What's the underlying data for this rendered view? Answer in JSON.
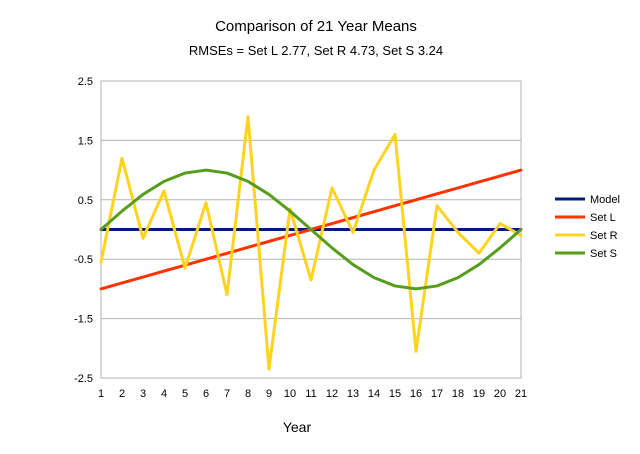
{
  "chart_data": {
    "type": "line",
    "title": "Comparison of 21 Year Means",
    "subtitle": "RMSEs = Set L 2.77, Set R 4.73, Set S 3.24",
    "xlabel": "Year",
    "ylabel": "",
    "categories": [
      "1",
      "2",
      "3",
      "4",
      "5",
      "6",
      "7",
      "8",
      "9",
      "10",
      "11",
      "12",
      "13",
      "14",
      "15",
      "16",
      "17",
      "18",
      "19",
      "20",
      "21"
    ],
    "ylim": [
      -2.5,
      2.5
    ],
    "yticks": [
      -2.5,
      -1.5,
      -0.5,
      0.5,
      1.5,
      2.5
    ],
    "ytick_labels": [
      "-2.5",
      "-1.5",
      "-0.5",
      "0.5",
      "1.5",
      "2.5"
    ],
    "grid": true,
    "legend_position": "right",
    "series": [
      {
        "name": "Model",
        "color": "#001a80",
        "values": [
          0,
          0,
          0,
          0,
          0,
          0,
          0,
          0,
          0,
          0,
          0,
          0,
          0,
          0,
          0,
          0,
          0,
          0,
          0,
          0,
          0
        ]
      },
      {
        "name": "Set L",
        "color": "#ff3300",
        "values": [
          -1.0,
          -0.9,
          -0.8,
          -0.7,
          -0.6,
          -0.5,
          -0.4,
          -0.3,
          -0.2,
          -0.1,
          0.0,
          0.1,
          0.2,
          0.3,
          0.4,
          0.5,
          0.6,
          0.7,
          0.8,
          0.9,
          1.0
        ]
      },
      {
        "name": "Set R",
        "color": "#ffd320",
        "values": [
          -0.55,
          1.2,
          -0.15,
          0.65,
          -0.65,
          0.45,
          -1.1,
          1.9,
          -2.35,
          0.35,
          -0.85,
          0.7,
          -0.05,
          1.0,
          1.6,
          -2.05,
          0.4,
          -0.05,
          -0.4,
          0.1,
          -0.1
        ]
      },
      {
        "name": "Set S",
        "color": "#579d1c",
        "values": [
          0.0,
          0.31,
          0.59,
          0.81,
          0.95,
          1.0,
          0.95,
          0.81,
          0.59,
          0.31,
          0.0,
          -0.31,
          -0.59,
          -0.81,
          -0.95,
          -1.0,
          -0.95,
          -0.81,
          -0.59,
          -0.31,
          0.0
        ]
      }
    ]
  }
}
